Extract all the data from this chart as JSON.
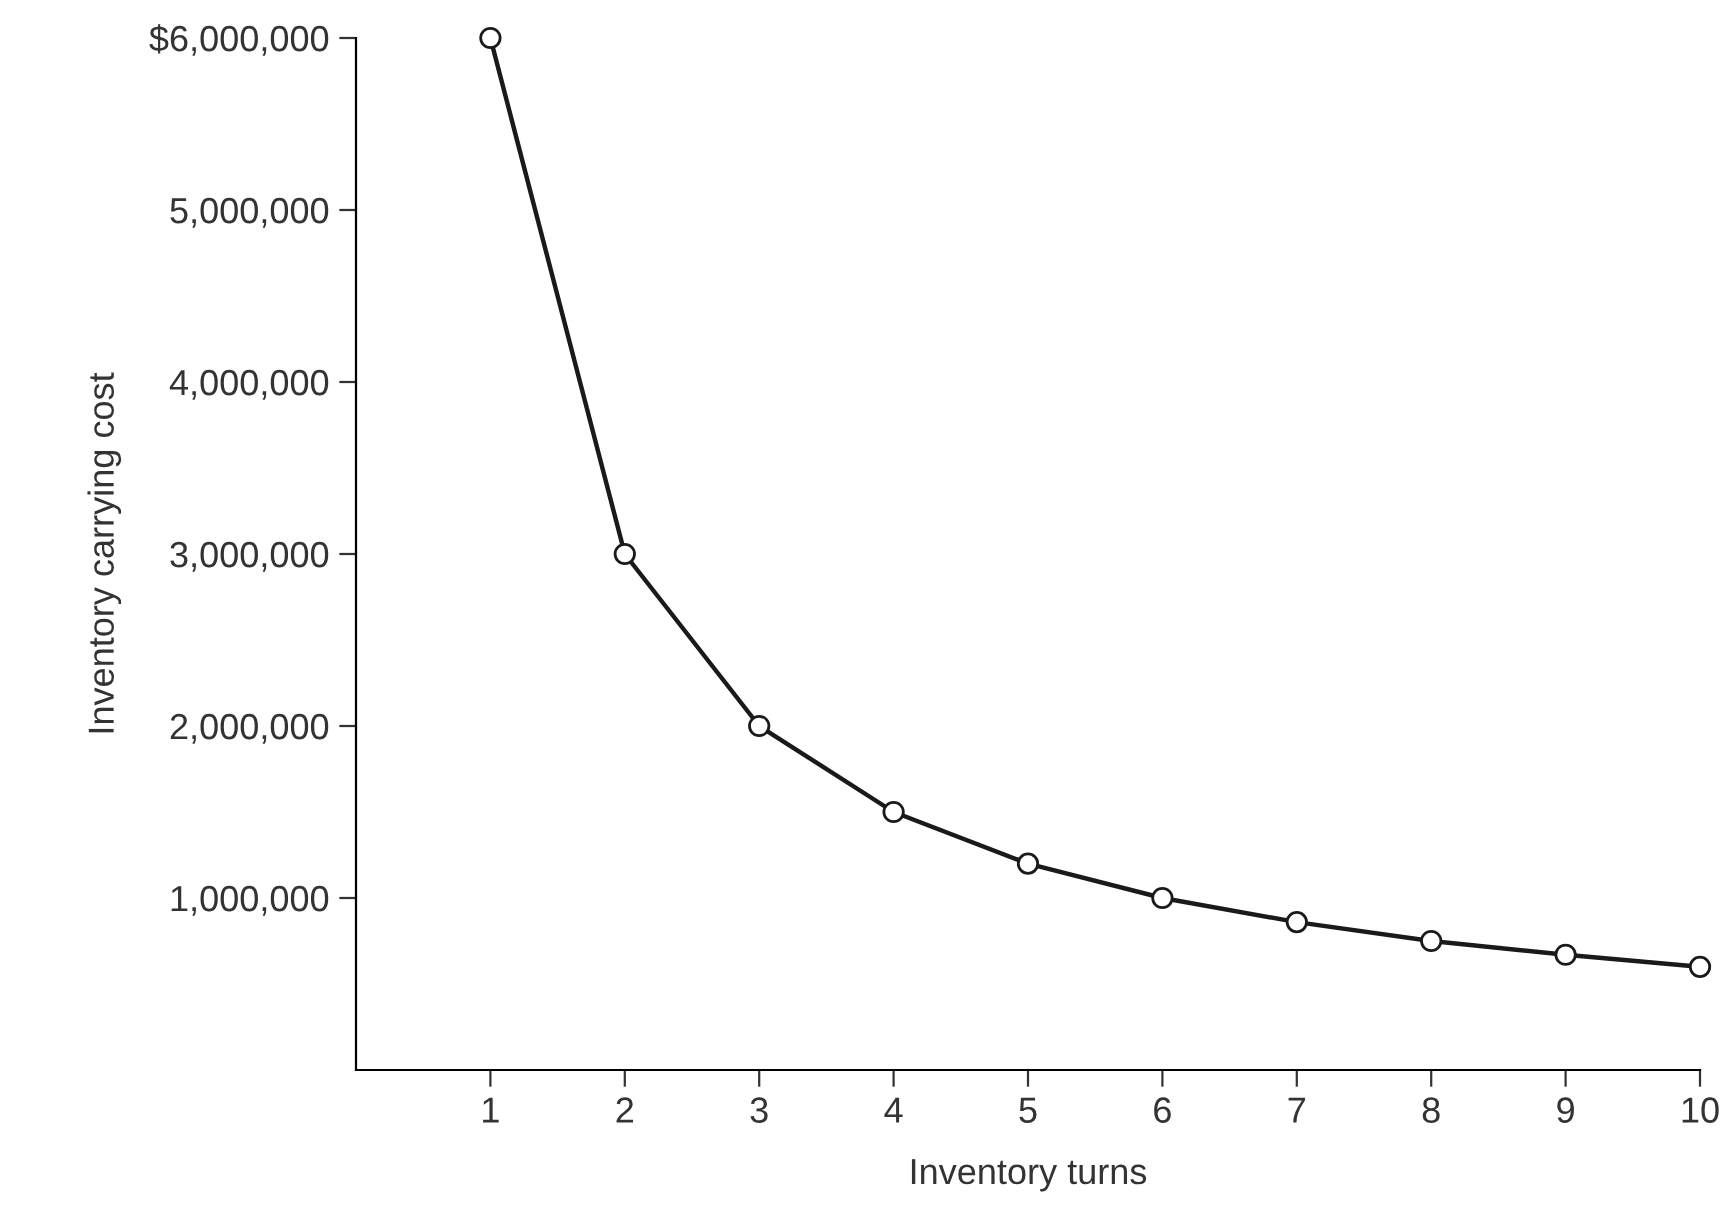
{
  "chart_data": {
    "type": "line",
    "xlabel": "Inventory turns",
    "ylabel": "Inventory carrying cost",
    "x": [
      1,
      2,
      3,
      4,
      5,
      6,
      7,
      8,
      9,
      10
    ],
    "series": [
      {
        "color": "#1a1a1a",
        "values": [
          6000000,
          3000000,
          2000000,
          1500000,
          1200000,
          1000000,
          860000,
          750000,
          670000,
          600000
        ]
      }
    ],
    "xlim": [
      0,
      10
    ],
    "xticks": [
      1,
      2,
      3,
      4,
      5,
      6,
      7,
      8,
      9,
      10
    ],
    "ylim": [
      0,
      6000000
    ],
    "yticks": [
      {
        "value": 1000000,
        "label": "1,000,000"
      },
      {
        "value": 2000000,
        "label": "2,000,000"
      },
      {
        "value": 3000000,
        "label": "3,000,000"
      },
      {
        "value": 4000000,
        "label": "4,000,000"
      },
      {
        "value": 5000000,
        "label": "5,000,000"
      },
      {
        "value": 6000000,
        "label": "$6,000,000"
      }
    ],
    "marker": "circle",
    "line_style": "solid",
    "grid": false,
    "legend": false
  }
}
